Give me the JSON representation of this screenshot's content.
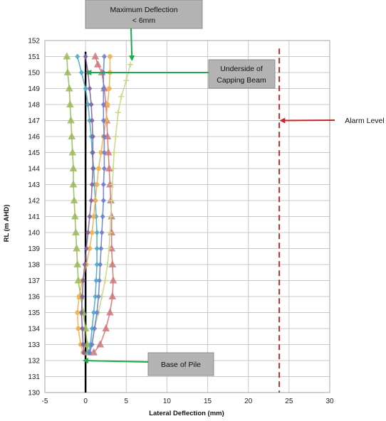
{
  "chart_data": {
    "type": "line",
    "title": "",
    "xlabel": "Lateral Deflection (mm)",
    "ylabel": "RL (m AHD)",
    "xlim": [
      -5,
      30
    ],
    "ylim": [
      130,
      152
    ],
    "xticks": [
      -5,
      0,
      5,
      10,
      15,
      20,
      25,
      30
    ],
    "yticks": [
      130,
      131,
      132,
      133,
      134,
      135,
      136,
      137,
      138,
      139,
      140,
      141,
      142,
      143,
      144,
      145,
      146,
      147,
      148,
      149,
      150,
      151,
      152
    ],
    "grid": true,
    "legend": "none",
    "series": [
      {
        "color": "#9bbb59",
        "marker": "triangle",
        "points": [
          [
            -2.3,
            151
          ],
          [
            -2.2,
            150
          ],
          [
            -2.0,
            149
          ],
          [
            -1.9,
            148
          ],
          [
            -1.8,
            147
          ],
          [
            -1.7,
            146
          ],
          [
            -1.6,
            145
          ],
          [
            -1.5,
            144
          ],
          [
            -1.5,
            143
          ],
          [
            -1.4,
            142
          ],
          [
            -1.3,
            141
          ],
          [
            -1.2,
            140
          ],
          [
            -1.1,
            139
          ],
          [
            -1.0,
            138
          ],
          [
            -0.9,
            137
          ],
          [
            -0.6,
            136
          ],
          [
            -0.3,
            135
          ],
          [
            0.0,
            134
          ],
          [
            0.2,
            133
          ],
          [
            0.3,
            132.5
          ]
        ]
      },
      {
        "color": "#d0777a",
        "marker": "triangle",
        "points": [
          [
            1.2,
            151
          ],
          [
            1.5,
            150.5
          ],
          [
            2.0,
            150
          ],
          [
            2.3,
            149
          ],
          [
            2.5,
            148
          ],
          [
            2.6,
            147
          ],
          [
            2.7,
            146
          ],
          [
            2.8,
            145
          ],
          [
            2.9,
            144
          ],
          [
            3.0,
            143
          ],
          [
            3.1,
            142
          ],
          [
            3.2,
            141
          ],
          [
            3.2,
            140
          ],
          [
            3.2,
            139
          ],
          [
            3.3,
            138
          ],
          [
            3.4,
            137
          ],
          [
            3.3,
            136
          ],
          [
            3.0,
            135
          ],
          [
            2.5,
            134
          ],
          [
            1.8,
            133
          ],
          [
            1.0,
            132.5
          ]
        ]
      },
      {
        "color": "#c8d68a",
        "marker": "plus",
        "points": [
          [
            5.5,
            150.5
          ],
          [
            5.0,
            149.5
          ],
          [
            4.4,
            148.5
          ],
          [
            4.0,
            147.5
          ],
          [
            3.7,
            146
          ],
          [
            3.5,
            145
          ],
          [
            3.4,
            144
          ],
          [
            3.3,
            143
          ],
          [
            3.2,
            142
          ],
          [
            3.1,
            141
          ],
          [
            3.0,
            140
          ],
          [
            2.9,
            139
          ],
          [
            2.7,
            138
          ],
          [
            2.4,
            137
          ],
          [
            2.0,
            136
          ],
          [
            1.6,
            135
          ],
          [
            1.1,
            134
          ],
          [
            0.7,
            133
          ],
          [
            0.5,
            132.5
          ]
        ]
      },
      {
        "color": "#4bacc6",
        "marker": "diamond",
        "points": [
          [
            -1.0,
            151
          ],
          [
            -0.5,
            150
          ],
          [
            0.0,
            149
          ],
          [
            0.3,
            148
          ],
          [
            0.5,
            147
          ],
          [
            0.7,
            146
          ],
          [
            0.8,
            145
          ],
          [
            1.0,
            144
          ],
          [
            1.1,
            143
          ],
          [
            1.2,
            142
          ],
          [
            1.3,
            141
          ],
          [
            1.4,
            140
          ],
          [
            1.4,
            139
          ],
          [
            1.4,
            138
          ],
          [
            1.3,
            137
          ],
          [
            1.2,
            136
          ],
          [
            1.0,
            135
          ],
          [
            0.8,
            134
          ],
          [
            0.6,
            133
          ],
          [
            0.4,
            132.5
          ]
        ]
      },
      {
        "color": "#f0b050",
        "marker": "circle",
        "points": [
          [
            3.0,
            151
          ],
          [
            3.0,
            150
          ],
          [
            2.9,
            149
          ],
          [
            2.7,
            148
          ],
          [
            2.5,
            147
          ],
          [
            2.2,
            146
          ],
          [
            1.9,
            145
          ],
          [
            1.6,
            144
          ],
          [
            1.4,
            143
          ],
          [
            1.2,
            142
          ],
          [
            1.0,
            141
          ],
          [
            0.8,
            140
          ],
          [
            0.5,
            139
          ],
          [
            0.1,
            138
          ],
          [
            -0.4,
            137
          ],
          [
            -0.8,
            136
          ],
          [
            -1.0,
            135
          ],
          [
            -0.9,
            134
          ],
          [
            -0.6,
            133
          ],
          [
            -0.3,
            132.5
          ]
        ]
      },
      {
        "color": "#8064a2",
        "marker": "diamond",
        "points": [
          [
            0.0,
            151
          ],
          [
            0.3,
            150
          ],
          [
            0.5,
            149
          ],
          [
            0.7,
            148
          ],
          [
            0.8,
            147
          ],
          [
            0.9,
            146
          ],
          [
            0.9,
            145
          ],
          [
            0.9,
            144
          ],
          [
            0.8,
            143
          ],
          [
            0.7,
            142
          ],
          [
            0.5,
            141
          ],
          [
            0.3,
            140
          ],
          [
            0.1,
            139
          ],
          [
            -0.1,
            138
          ],
          [
            -0.3,
            137
          ],
          [
            -0.4,
            136
          ],
          [
            -0.5,
            135
          ],
          [
            -0.4,
            134
          ],
          [
            -0.3,
            133
          ],
          [
            -0.2,
            132.5
          ]
        ]
      },
      {
        "color": "#6c7fcf",
        "marker": "diamond",
        "points": [
          [
            2.3,
            151
          ],
          [
            2.2,
            150
          ],
          [
            2.2,
            149
          ],
          [
            2.2,
            148
          ],
          [
            2.2,
            147
          ],
          [
            2.3,
            146
          ],
          [
            2.3,
            145
          ],
          [
            2.3,
            144
          ],
          [
            2.2,
            143
          ],
          [
            2.2,
            142
          ],
          [
            2.1,
            141
          ],
          [
            2.0,
            140
          ],
          [
            1.9,
            139
          ],
          [
            1.8,
            138
          ],
          [
            1.7,
            137
          ],
          [
            1.6,
            136
          ],
          [
            1.4,
            135
          ],
          [
            1.1,
            134
          ],
          [
            0.8,
            133
          ],
          [
            0.5,
            132.5
          ]
        ]
      }
    ],
    "reference_lines": [
      {
        "orientation": "vertical",
        "x": 0,
        "color": "#000000",
        "style": "solid"
      },
      {
        "orientation": "vertical",
        "x": 23.8,
        "color": "#c0282d",
        "style": "dashed"
      }
    ],
    "annotations": [
      {
        "id": "max",
        "text": [
          "Maximum Deflection",
          "< 6mm"
        ],
        "box": true,
        "arrow_to": [
          5.7,
          150.8
        ]
      },
      {
        "id": "capping",
        "text": [
          "Underside of",
          "Capping Beam"
        ],
        "box": true,
        "arrow_to": [
          0.2,
          150
        ]
      },
      {
        "id": "alarm",
        "text": [
          "Alarm Level"
        ],
        "box": false,
        "arrow_to": [
          24.0,
          147
        ]
      },
      {
        "id": "base",
        "text": [
          "Base of Pile"
        ],
        "box": true,
        "arrow_to": [
          -0.2,
          132
        ]
      }
    ]
  }
}
